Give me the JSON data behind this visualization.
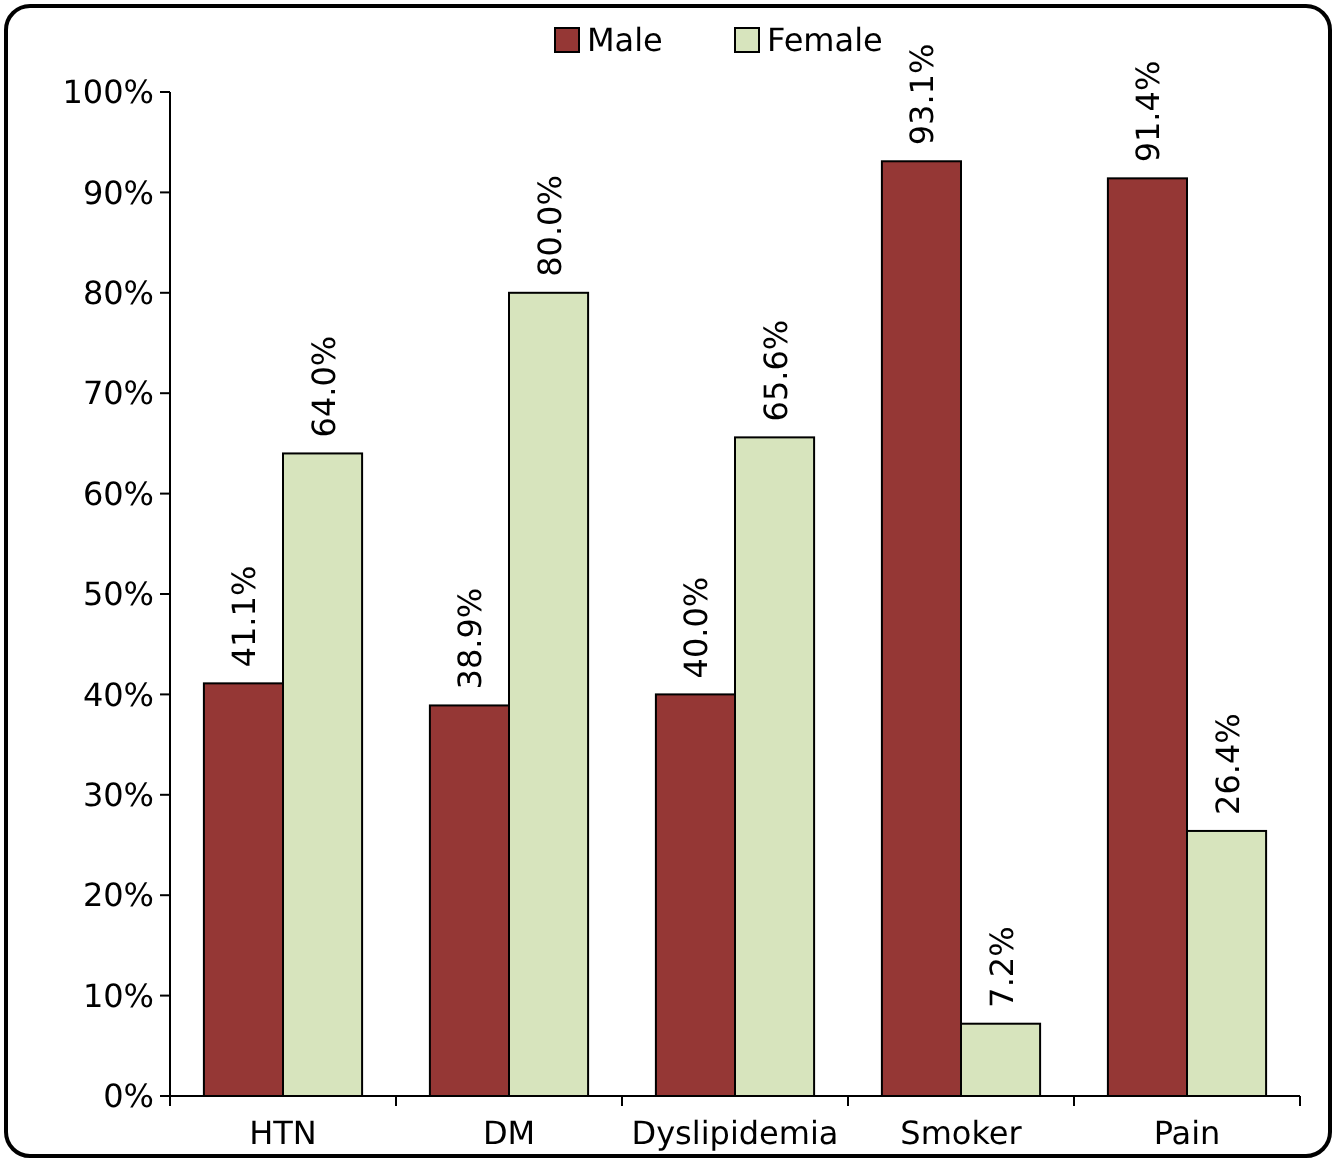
{
  "chart_data": {
    "type": "bar",
    "categories": [
      "HTN",
      "DM",
      "Dyslipidemia",
      "Smoker",
      "Pain"
    ],
    "series": [
      {
        "name": "Male",
        "color": "#953735",
        "values": [
          41.1,
          38.9,
          40.0,
          93.1,
          91.4
        ],
        "value_labels": [
          "41.1%",
          "38.9%",
          "40.0%",
          "93.1%",
          "91.4%"
        ]
      },
      {
        "name": "Female",
        "color": "#d7e4bd",
        "values": [
          64.0,
          80.0,
          65.6,
          7.2,
          26.4
        ],
        "value_labels": [
          "64.0%",
          "80.0%",
          "65.6%",
          "7.2%",
          "26.4%"
        ]
      }
    ],
    "ylim": [
      0,
      100
    ],
    "yticks": [
      {
        "value": 0,
        "label": "0%"
      },
      {
        "value": 10,
        "label": "10%"
      },
      {
        "value": 20,
        "label": "20%"
      },
      {
        "value": 30,
        "label": "30%"
      },
      {
        "value": 40,
        "label": "40%"
      },
      {
        "value": 50,
        "label": "50%"
      },
      {
        "value": 60,
        "label": "60%"
      },
      {
        "value": 70,
        "label": "70%"
      },
      {
        "value": 80,
        "label": "80%"
      },
      {
        "value": 90,
        "label": "90%"
      },
      {
        "value": 100,
        "label": "100%"
      }
    ],
    "legend": "top",
    "grid": false
  }
}
